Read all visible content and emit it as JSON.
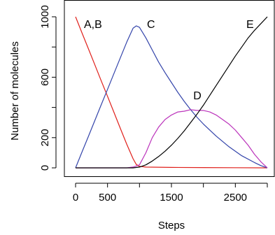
{
  "chart_data": {
    "type": "line",
    "xlabel": "Steps",
    "ylabel": "Number of molecules",
    "xlim": [
      0,
      3000
    ],
    "ylim": [
      0,
      1000
    ],
    "x_ticks": [
      {
        "value": 0,
        "label": "0"
      },
      {
        "value": 500,
        "label": "500"
      },
      {
        "value": 1500,
        "label": "1500"
      },
      {
        "value": 2500,
        "label": "2500"
      }
    ],
    "y_ticks": [
      {
        "value": 0,
        "label": "0"
      },
      {
        "value": 200,
        "label": "200"
      },
      {
        "value": 600,
        "label": "600"
      },
      {
        "value": 1000,
        "label": "1000"
      }
    ],
    "series": [
      {
        "name": "A,B",
        "color": "#e0201b",
        "points": [
          [
            0,
            1000
          ],
          [
            100,
            894
          ],
          [
            200,
            789
          ],
          [
            300,
            684
          ],
          [
            400,
            578
          ],
          [
            500,
            473
          ],
          [
            600,
            368
          ],
          [
            700,
            262
          ],
          [
            800,
            157
          ],
          [
            900,
            60
          ],
          [
            950,
            22
          ],
          [
            1000,
            10
          ],
          [
            1100,
            5
          ],
          [
            1500,
            3
          ],
          [
            2000,
            2
          ],
          [
            2500,
            1
          ],
          [
            3000,
            0
          ]
        ]
      },
      {
        "name": "C",
        "color": "#3344aa",
        "points": [
          [
            0,
            0
          ],
          [
            100,
            104
          ],
          [
            200,
            208
          ],
          [
            300,
            312
          ],
          [
            400,
            416
          ],
          [
            500,
            520
          ],
          [
            600,
            624
          ],
          [
            700,
            728
          ],
          [
            800,
            832
          ],
          [
            900,
            925
          ],
          [
            950,
            940
          ],
          [
            1000,
            930
          ],
          [
            1100,
            860
          ],
          [
            1200,
            780
          ],
          [
            1300,
            700
          ],
          [
            1400,
            630
          ],
          [
            1500,
            565
          ],
          [
            1600,
            500
          ],
          [
            1700,
            440
          ],
          [
            1800,
            385
          ],
          [
            1900,
            335
          ],
          [
            2000,
            290
          ],
          [
            2200,
            210
          ],
          [
            2400,
            140
          ],
          [
            2600,
            80
          ],
          [
            2800,
            35
          ],
          [
            2900,
            15
          ],
          [
            3000,
            0
          ]
        ]
      },
      {
        "name": "D",
        "color": "#bb33bb",
        "points": [
          [
            0,
            0
          ],
          [
            800,
            0
          ],
          [
            900,
            5
          ],
          [
            1000,
            20
          ],
          [
            1100,
            100
          ],
          [
            1200,
            200
          ],
          [
            1300,
            270
          ],
          [
            1400,
            320
          ],
          [
            1500,
            350
          ],
          [
            1600,
            370
          ],
          [
            1700,
            375
          ],
          [
            1800,
            385
          ],
          [
            1900,
            380
          ],
          [
            2000,
            380
          ],
          [
            2100,
            370
          ],
          [
            2200,
            350
          ],
          [
            2300,
            320
          ],
          [
            2400,
            290
          ],
          [
            2500,
            250
          ],
          [
            2600,
            200
          ],
          [
            2700,
            150
          ],
          [
            2800,
            90
          ],
          [
            2900,
            40
          ],
          [
            3000,
            0
          ]
        ]
      },
      {
        "name": "E",
        "color": "#000000",
        "points": [
          [
            0,
            0
          ],
          [
            900,
            0
          ],
          [
            1000,
            5
          ],
          [
            1100,
            20
          ],
          [
            1200,
            45
          ],
          [
            1300,
            75
          ],
          [
            1400,
            110
          ],
          [
            1500,
            150
          ],
          [
            1600,
            195
          ],
          [
            1700,
            245
          ],
          [
            1800,
            300
          ],
          [
            1900,
            355
          ],
          [
            2000,
            415
          ],
          [
            2100,
            480
          ],
          [
            2200,
            545
          ],
          [
            2300,
            610
          ],
          [
            2400,
            675
          ],
          [
            2500,
            740
          ],
          [
            2600,
            800
          ],
          [
            2700,
            860
          ],
          [
            2800,
            910
          ],
          [
            2900,
            955
          ],
          [
            3000,
            1000
          ]
        ]
      }
    ]
  }
}
